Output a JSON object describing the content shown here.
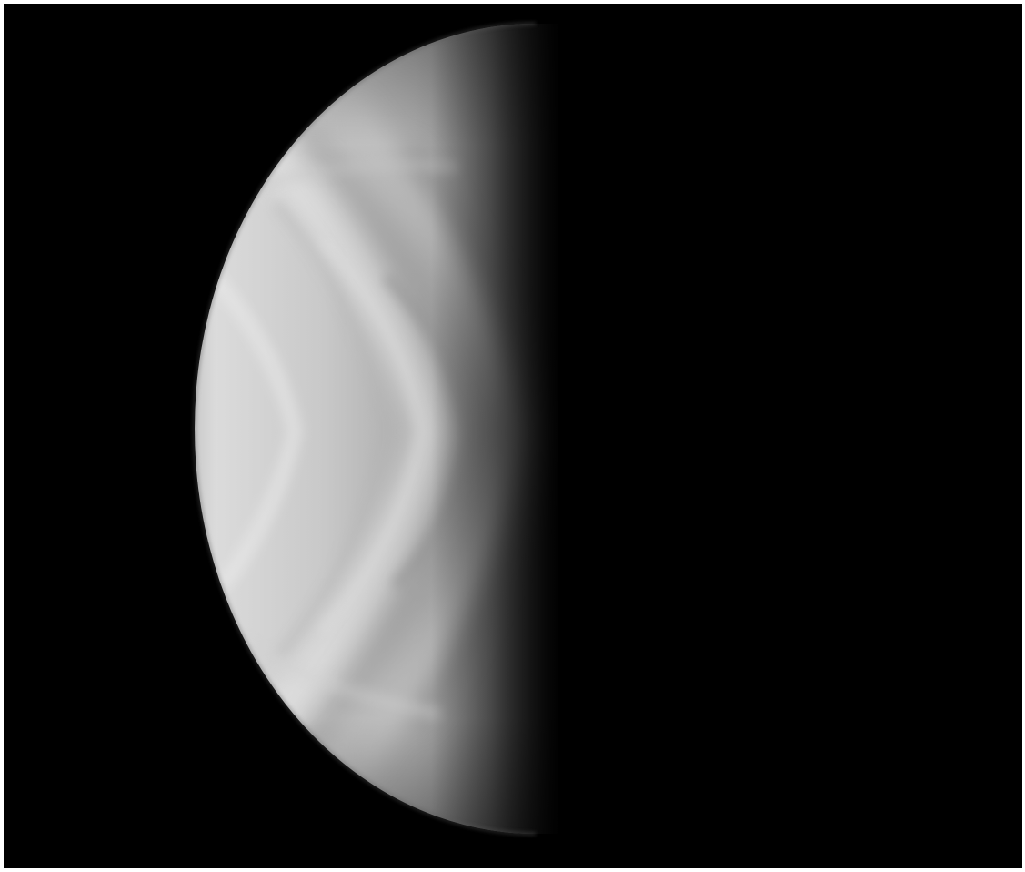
{
  "image": {
    "subject": "planet-half-phase",
    "colors": {
      "space": "#000000",
      "border": "#ffffff",
      "limb_highlight": "#e8e8e8",
      "disc_mid": "#bdbdbd",
      "terminator_shadow": "#3a3a3a"
    }
  }
}
